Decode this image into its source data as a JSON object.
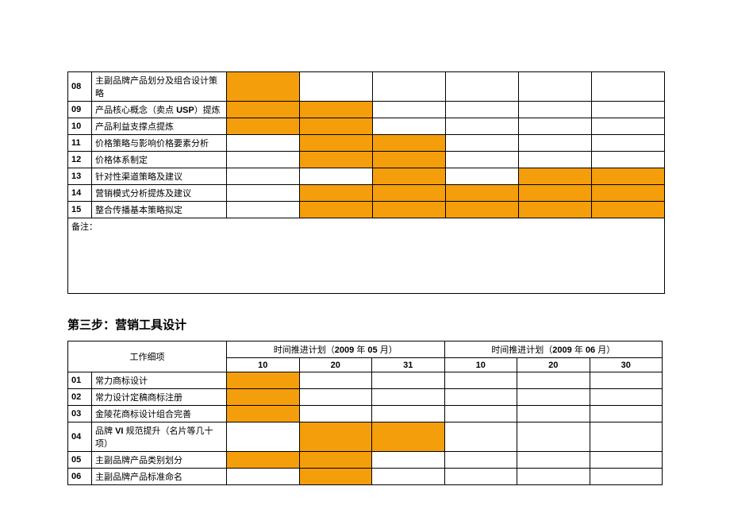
{
  "colors": {
    "fill": "#f59e0b",
    "border": "#000000",
    "background": "#ffffff"
  },
  "table1": {
    "rows": [
      {
        "num": "08",
        "task": "主副品牌产品划分及组合设计策略",
        "fill": [
          true,
          false,
          false,
          false,
          false,
          false
        ]
      },
      {
        "num": "09",
        "task": "产品核心概念（卖点 USP）提炼",
        "fill": [
          true,
          true,
          false,
          false,
          false,
          false
        ]
      },
      {
        "num": "10",
        "task": "产品利益支撑点提炼",
        "fill": [
          true,
          true,
          false,
          false,
          false,
          false
        ]
      },
      {
        "num": "11",
        "task": "价格策略与影响价格要素分析",
        "fill": [
          false,
          true,
          true,
          false,
          false,
          false
        ]
      },
      {
        "num": "12",
        "task": "价格体系制定",
        "fill": [
          false,
          true,
          true,
          false,
          false,
          false
        ]
      },
      {
        "num": "13",
        "task": "针对性渠道策略及建议",
        "fill": [
          false,
          false,
          true,
          false,
          true,
          true
        ]
      },
      {
        "num": "14",
        "task": "营销模式分析提炼及建议",
        "fill": [
          false,
          true,
          true,
          true,
          true,
          true
        ]
      },
      {
        "num": "15",
        "task": "整合传播基本策略拟定",
        "fill": [
          false,
          true,
          true,
          true,
          true,
          true
        ]
      }
    ],
    "notes_label": "备注："
  },
  "section2_title": "第三步：营销工具设计",
  "table2": {
    "work_item_header": "工作细项",
    "period1_prefix": "时间推进计划（",
    "period1_bold": "2009",
    "period1_mid": " 年 ",
    "period1_bold2": "05",
    "period1_suffix": " 月）",
    "period2_prefix": "时间推进计划（",
    "period2_bold": "2009",
    "period2_mid": " 年 ",
    "period2_bold2": "06",
    "period2_suffix": " 月）",
    "sub_headers": [
      "10",
      "20",
      "31",
      "10",
      "20",
      "30"
    ],
    "rows": [
      {
        "num": "01",
        "task": "常力商标设计",
        "fill": [
          true,
          false,
          false,
          false,
          false,
          false
        ]
      },
      {
        "num": "02",
        "task": "常力设计定稿商标注册",
        "fill": [
          true,
          false,
          false,
          false,
          false,
          false
        ]
      },
      {
        "num": "03",
        "task": "金陵花商标设计组合完善",
        "fill": [
          true,
          false,
          false,
          false,
          false,
          false
        ]
      },
      {
        "num": "04",
        "task": "品牌 VI 规范提升（名片等几十项）",
        "fill": [
          false,
          true,
          true,
          false,
          false,
          false
        ],
        "tall": true
      },
      {
        "num": "05",
        "task": "主副品牌产品类别划分",
        "fill": [
          true,
          true,
          false,
          false,
          false,
          false
        ]
      },
      {
        "num": "06",
        "task": "主副品牌产品标准命名",
        "fill": [
          false,
          true,
          false,
          false,
          false,
          false
        ]
      }
    ]
  }
}
